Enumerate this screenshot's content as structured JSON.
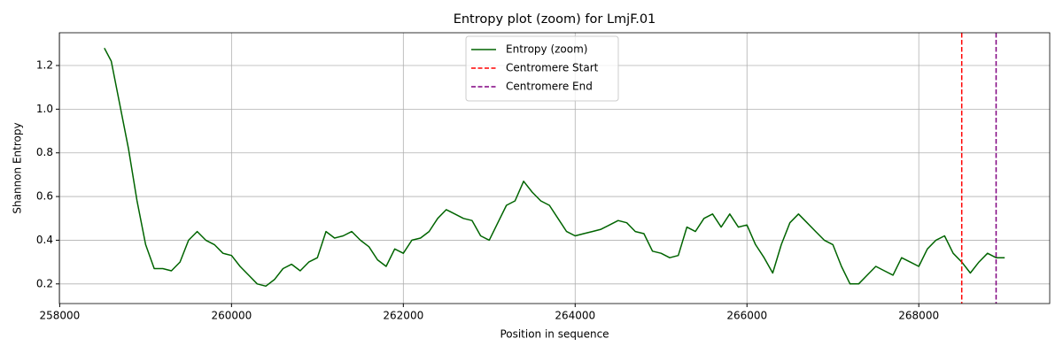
{
  "chart_data": {
    "type": "line",
    "title": "Entropy plot (zoom) for LmjF.01",
    "x_label": "Position in sequence",
    "y_label": "Shannon Entropy",
    "x": [
      258520,
      258600,
      258700,
      258800,
      258900,
      259000,
      259100,
      259200,
      259300,
      259400,
      259500,
      259600,
      259700,
      259800,
      259900,
      260000,
      260100,
      260200,
      260300,
      260400,
      260500,
      260600,
      260700,
      260800,
      260900,
      261000,
      261100,
      261200,
      261300,
      261400,
      261500,
      261600,
      261700,
      261800,
      261900,
      262000,
      262100,
      262200,
      262300,
      262400,
      262500,
      262600,
      262700,
      262800,
      262900,
      263000,
      263100,
      263200,
      263300,
      263400,
      263500,
      263600,
      263700,
      263800,
      263900,
      264000,
      264100,
      264200,
      264300,
      264400,
      264500,
      264600,
      264700,
      264800,
      264900,
      265000,
      265100,
      265200,
      265300,
      265400,
      265500,
      265600,
      265700,
      265800,
      265900,
      266000,
      266100,
      266200,
      266300,
      266400,
      266500,
      266600,
      266700,
      266800,
      266900,
      267000,
      267100,
      267200,
      267300,
      267400,
      267500,
      267600,
      267700,
      267800,
      267900,
      268000,
      268100,
      268200,
      268300,
      268400,
      268500,
      268600,
      268700,
      268800,
      268900,
      269000
    ],
    "series": [
      {
        "name": "Entropy (zoom)",
        "color": "#006400",
        "values": [
          1.28,
          1.22,
          1.02,
          0.82,
          0.58,
          0.38,
          0.27,
          0.27,
          0.26,
          0.3,
          0.4,
          0.44,
          0.4,
          0.38,
          0.34,
          0.33,
          0.28,
          0.24,
          0.2,
          0.19,
          0.22,
          0.27,
          0.29,
          0.26,
          0.3,
          0.32,
          0.44,
          0.41,
          0.42,
          0.44,
          0.4,
          0.37,
          0.31,
          0.28,
          0.36,
          0.34,
          0.4,
          0.41,
          0.44,
          0.5,
          0.54,
          0.52,
          0.5,
          0.49,
          0.42,
          0.4,
          0.48,
          0.56,
          0.58,
          0.67,
          0.62,
          0.58,
          0.56,
          0.5,
          0.44,
          0.42,
          0.43,
          0.44,
          0.45,
          0.47,
          0.49,
          0.48,
          0.44,
          0.43,
          0.35,
          0.34,
          0.32,
          0.33,
          0.46,
          0.44,
          0.5,
          0.52,
          0.46,
          0.52,
          0.46,
          0.47,
          0.38,
          0.32,
          0.25,
          0.38,
          0.48,
          0.52,
          0.48,
          0.44,
          0.4,
          0.38,
          0.28,
          0.2,
          0.2,
          0.24,
          0.28,
          0.26,
          0.24,
          0.32,
          0.3,
          0.28,
          0.36,
          0.4,
          0.42,
          0.34,
          0.3,
          0.25,
          0.3,
          0.34,
          0.32,
          0.32
        ]
      }
    ],
    "vlines": [
      {
        "name": "Centromere Start",
        "x": 268500,
        "color": "red"
      },
      {
        "name": "Centromere End",
        "x": 268900,
        "color": "purple"
      }
    ],
    "xlim": [
      257996,
      269524
    ],
    "ylim": [
      0.11,
      1.35
    ],
    "xticks": [
      258000,
      260000,
      262000,
      264000,
      266000,
      268000
    ],
    "yticks": [
      0.2,
      0.4,
      0.6,
      0.8,
      {
        "value": 1,
        "label": "1.0"
      },
      1.2
    ],
    "grid": true,
    "legend": "upper center"
  }
}
